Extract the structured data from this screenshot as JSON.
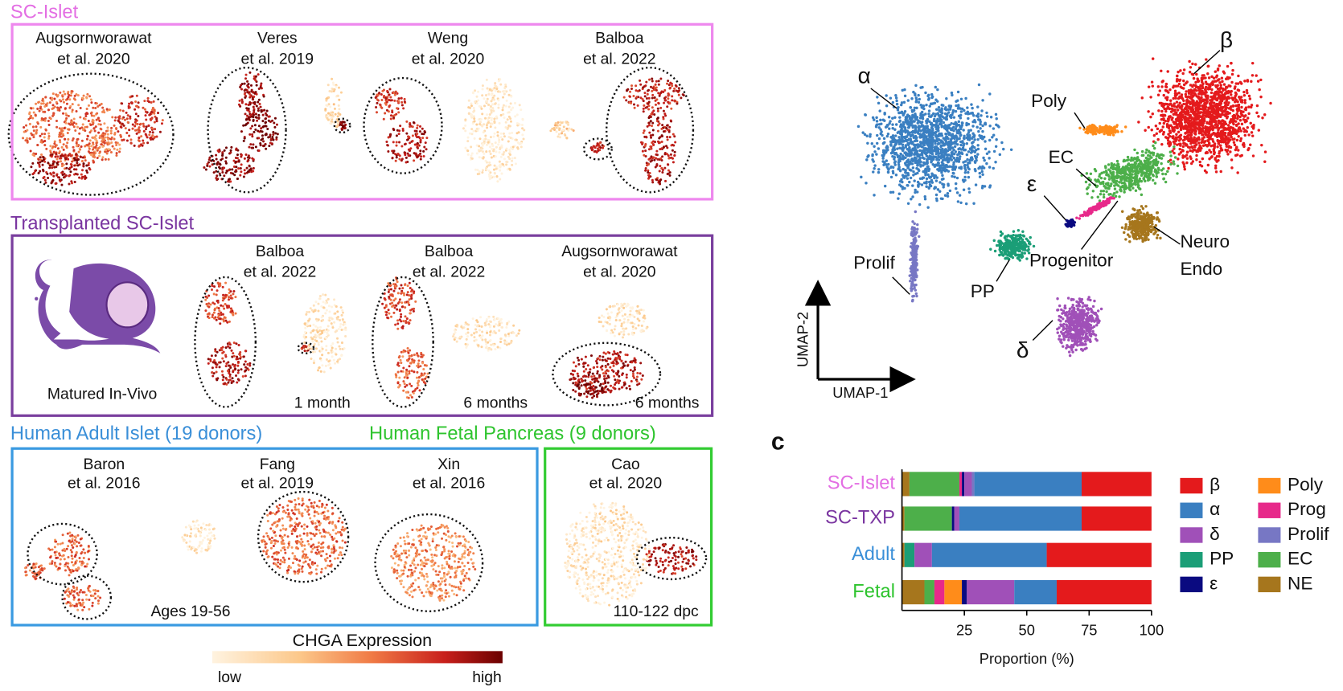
{
  "sections": [
    {
      "title": "SC-Islet",
      "datasets": [
        {
          "line1": "Augsornworawat",
          "line2": "et al. 2020"
        },
        {
          "line1": "Veres",
          "line2": "et al. 2019"
        },
        {
          "line1": "Weng",
          "line2": "et al. 2020"
        },
        {
          "line1": "Balboa",
          "line2": "et al. 2022"
        }
      ]
    },
    {
      "title": "Transplanted SC-Islet",
      "note": "Matured In-Vivo",
      "datasets": [
        {
          "line1": "Balboa",
          "line2": "et al. 2022",
          "time": "1 month"
        },
        {
          "line1": "Balboa",
          "line2": "et al. 2022",
          "time": "6 months"
        },
        {
          "line1": "Augsornworawat",
          "line2": "et al. 2020",
          "time": "6 months"
        }
      ]
    },
    {
      "title": "Human Adult Islet (19 donors)",
      "note": "Ages 19-56",
      "datasets": [
        {
          "line1": "Baron",
          "line2": "et al. 2016"
        },
        {
          "line1": "Fang",
          "line2": "et al. 2019"
        },
        {
          "line1": "Xin",
          "line2": "et al. 2016"
        }
      ]
    },
    {
      "title": "Human Fetal Pancreas (9 donors)",
      "note": "110-122 dpc",
      "datasets": [
        {
          "line1": "Cao",
          "line2": "et al. 2020"
        }
      ]
    }
  ],
  "colorbar": {
    "title": "CHGA Expression",
    "low": "low",
    "high": "high"
  },
  "umap": {
    "x_label": "UMAP-1",
    "y_label": "UMAP-2",
    "labels": {
      "alpha": "α",
      "beta": "β",
      "poly": "Poly",
      "ec": "EC",
      "epsilon": "ε",
      "progenitor": "Progenitor",
      "neuro_endo": [
        "Neuro",
        "Endo"
      ],
      "prolif": "Prolif",
      "pp": "PP",
      "delta": "δ"
    }
  },
  "panel_letter": "c",
  "chart_data": {
    "type": "bar",
    "orientation": "horizontal",
    "stacked": true,
    "categories": [
      "SC-Islet",
      "SC-TXP",
      "Adult",
      "Fetal"
    ],
    "category_colors": [
      "#e36ee3",
      "#7a35a0",
      "#3a8fd8",
      "#2ec42e"
    ],
    "series": [
      {
        "name": "NE",
        "color": "#a6761d",
        "values": [
          3,
          1,
          1,
          9
        ]
      },
      {
        "name": "EC",
        "color": "#4daf4a",
        "values": [
          20,
          19,
          0,
          4
        ]
      },
      {
        "name": "PP",
        "color": "#1b9e77",
        "values": [
          0,
          0,
          4,
          0
        ]
      },
      {
        "name": "Prog",
        "color": "#e7298a",
        "values": [
          1,
          0,
          0,
          4
        ]
      },
      {
        "name": "Poly",
        "color": "#ff8c1a",
        "values": [
          0,
          0,
          0,
          7
        ]
      },
      {
        "name": "ε",
        "color": "#0a0a80",
        "values": [
          1,
          1,
          0,
          2
        ]
      },
      {
        "name": "δ",
        "color": "#a050b8",
        "values": [
          3,
          2,
          7,
          19
        ]
      },
      {
        "name": "Prolif",
        "color": "#7777c4",
        "values": [
          1,
          0,
          0,
          0
        ]
      },
      {
        "name": "α",
        "color": "#3a7fc1",
        "values": [
          43,
          49,
          46,
          17
        ]
      },
      {
        "name": "β",
        "color": "#e41a1c",
        "values": [
          28,
          28,
          42,
          38
        ]
      }
    ],
    "x_label": "Proportion (%)",
    "xlim": [
      0,
      100
    ],
    "xticks": [
      25,
      50,
      75,
      100
    ]
  }
}
